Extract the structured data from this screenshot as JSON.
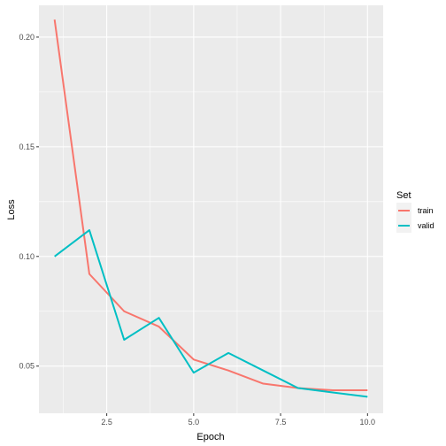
{
  "chart_data": {
    "type": "line",
    "xlabel": "Epoch",
    "ylabel": "Loss",
    "xlim": [
      0.55,
      10.45
    ],
    "ylim": [
      0.0285,
      0.2145
    ],
    "x_ticks": [
      2.5,
      5.0,
      7.5,
      10.0
    ],
    "x_tick_labels": [
      "2.5",
      "5.0",
      "7.5",
      "10.0"
    ],
    "y_ticks": [
      0.05,
      0.1,
      0.15,
      0.2
    ],
    "y_tick_labels": [
      "0.05",
      "0.10",
      "0.15",
      "0.20"
    ],
    "x_minor_ticks": [
      1.25,
      3.75,
      6.25,
      8.75
    ],
    "y_minor_ticks": [
      0.075,
      0.125,
      0.175
    ],
    "grid": true,
    "legend": {
      "title": "Set",
      "position": "right"
    },
    "x": [
      1,
      2,
      3,
      4,
      5,
      6,
      7,
      8,
      9,
      10
    ],
    "series": [
      {
        "name": "train",
        "color": "#F8766D",
        "values": [
          0.208,
          0.092,
          0.075,
          0.068,
          0.053,
          0.048,
          0.042,
          0.04,
          0.039,
          0.039
        ]
      },
      {
        "name": "valid",
        "color": "#00BFC4",
        "values": [
          0.1,
          0.112,
          0.062,
          0.072,
          0.047,
          0.056,
          0.048,
          0.04,
          0.038,
          0.036
        ]
      }
    ],
    "panel_color": "#EBEBEB",
    "grid_color": "#FFFFFF"
  }
}
